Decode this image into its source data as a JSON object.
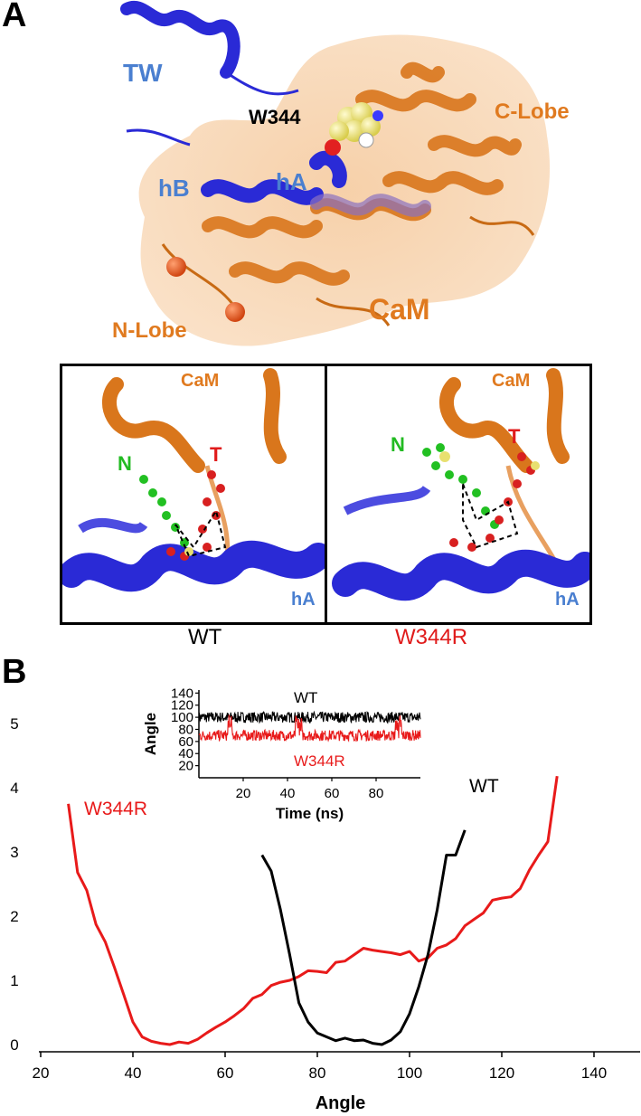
{
  "panelA": {
    "letter": "A",
    "labels": {
      "tw": "TW",
      "w344": "W344",
      "c_lobe": "C-Lobe",
      "hb": "hB",
      "ha": "hA",
      "cam": "CaM",
      "n_lobe": "N-Lobe"
    },
    "insets": [
      {
        "cam": "CaM",
        "n": "N",
        "t": "T",
        "ha": "hA",
        "caption": "WT"
      },
      {
        "cam": "CaM",
        "n": "N",
        "t": "T",
        "ha": "hA",
        "caption": "W344R"
      }
    ],
    "colors": {
      "blue_label": "#4a7fd0",
      "orange": "#e07a1f",
      "green": "#22bb22",
      "red": "#e01b1b",
      "protein_blue": "#2a2ad6",
      "protein_orange": "#e8862c"
    }
  },
  "panelB": {
    "letter": "B"
  },
  "chart_data": [
    {
      "type": "line",
      "xlabel": "Angle",
      "ylabel": "",
      "xlim": [
        20,
        150
      ],
      "ylim": [
        0,
        5
      ],
      "xticks": [
        20,
        40,
        60,
        80,
        100,
        120,
        140
      ],
      "yticks": [
        0,
        1,
        2,
        3,
        4,
        5
      ],
      "series": [
        {
          "name": "W344R",
          "color": "#e81a1a",
          "points": [
            [
              26,
              3.75
            ],
            [
              28,
              2.68
            ],
            [
              30,
              2.4
            ],
            [
              32,
              1.87
            ],
            [
              34,
              1.6
            ],
            [
              36,
              1.2
            ],
            [
              38,
              0.78
            ],
            [
              40,
              0.35
            ],
            [
              42,
              0.12
            ],
            [
              44,
              0.05
            ],
            [
              46,
              0.02
            ],
            [
              48,
              0.0
            ],
            [
              50,
              0.04
            ],
            [
              52,
              0.02
            ],
            [
              54,
              0.08
            ],
            [
              56,
              0.18
            ],
            [
              58,
              0.27
            ],
            [
              60,
              0.35
            ],
            [
              62,
              0.45
            ],
            [
              64,
              0.56
            ],
            [
              66,
              0.72
            ],
            [
              68,
              0.78
            ],
            [
              70,
              0.92
            ],
            [
              72,
              0.97
            ],
            [
              74,
              1.0
            ],
            [
              76,
              1.06
            ],
            [
              78,
              1.15
            ],
            [
              80,
              1.14
            ],
            [
              82,
              1.12
            ],
            [
              84,
              1.28
            ],
            [
              86,
              1.3
            ],
            [
              88,
              1.4
            ],
            [
              90,
              1.5
            ],
            [
              92,
              1.47
            ],
            [
              94,
              1.45
            ],
            [
              96,
              1.43
            ],
            [
              98,
              1.4
            ],
            [
              100,
              1.45
            ],
            [
              102,
              1.3
            ],
            [
              104,
              1.35
            ],
            [
              106,
              1.5
            ],
            [
              108,
              1.55
            ],
            [
              110,
              1.65
            ],
            [
              112,
              1.85
            ],
            [
              114,
              1.95
            ],
            [
              116,
              2.05
            ],
            [
              118,
              2.25
            ],
            [
              120,
              2.28
            ],
            [
              122,
              2.3
            ],
            [
              124,
              2.43
            ],
            [
              126,
              2.72
            ],
            [
              128,
              2.95
            ],
            [
              130,
              3.16
            ],
            [
              132,
              4.18
            ]
          ]
        },
        {
          "name": "WT",
          "color": "#000000",
          "points": [
            [
              68,
              2.95
            ],
            [
              70,
              2.7
            ],
            [
              72,
              2.1
            ],
            [
              74,
              1.4
            ],
            [
              76,
              0.65
            ],
            [
              78,
              0.35
            ],
            [
              80,
              0.18
            ],
            [
              82,
              0.12
            ],
            [
              84,
              0.06
            ],
            [
              86,
              0.1
            ],
            [
              88,
              0.06
            ],
            [
              90,
              0.07
            ],
            [
              92,
              0.02
            ],
            [
              94,
              0.0
            ],
            [
              96,
              0.07
            ],
            [
              98,
              0.2
            ],
            [
              100,
              0.48
            ],
            [
              102,
              0.9
            ],
            [
              104,
              1.4
            ],
            [
              106,
              2.1
            ],
            [
              108,
              2.95
            ],
            [
              110,
              2.95
            ],
            [
              112,
              3.34
            ]
          ]
        }
      ],
      "annotations": [
        "W344R",
        "WT"
      ]
    },
    {
      "type": "line",
      "xlabel": "Time (ns)",
      "ylabel": "Angle",
      "xlim": [
        0,
        100
      ],
      "ylim": [
        0,
        145
      ],
      "xticks": [
        20,
        40,
        60,
        80
      ],
      "yticks": [
        20,
        40,
        60,
        80,
        100,
        120,
        140
      ],
      "series": [
        {
          "name": "WT",
          "color": "#000000",
          "mean": 100,
          "noise": 9
        },
        {
          "name": "W344R",
          "color": "#e81a1a",
          "mean": 70,
          "noise": 9
        }
      ],
      "annotations": [
        "WT",
        "W344R"
      ]
    }
  ]
}
